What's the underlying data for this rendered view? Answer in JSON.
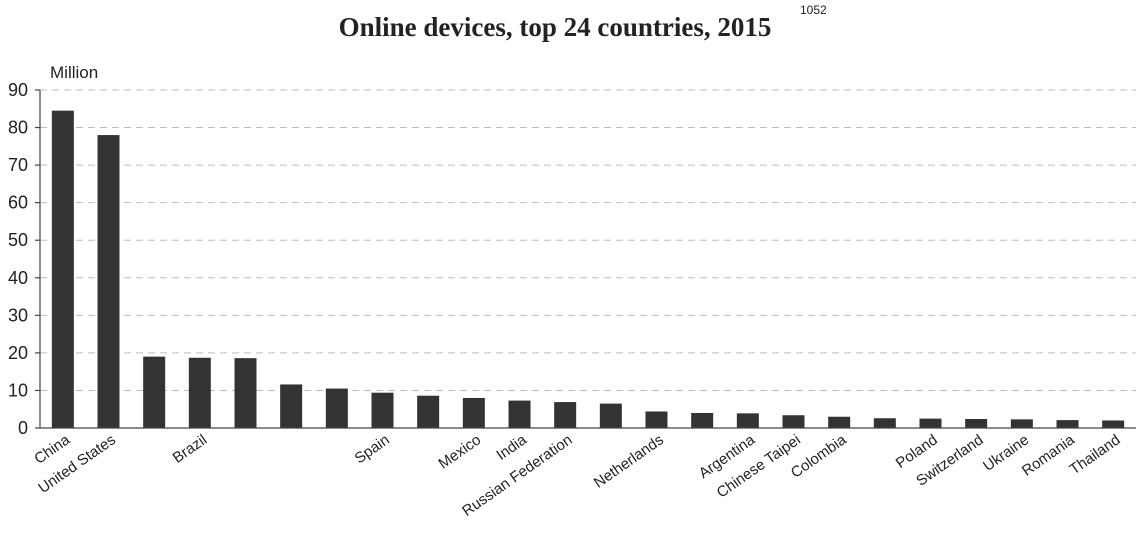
{
  "chart_data": {
    "type": "bar",
    "title": "Online devices, top 24 countries, 2015",
    "title_superscript": "1052",
    "ylabel": "Million",
    "xlabel": "",
    "ylim": [
      0,
      90
    ],
    "yticks": [
      0,
      10,
      20,
      30,
      40,
      50,
      60,
      70,
      80,
      90
    ],
    "grid": true,
    "legend": "none",
    "bar_color": "#333333",
    "categories": [
      "China",
      "United States",
      "",
      "Brazil",
      "",
      "",
      "",
      "Spain",
      "",
      "Mexico",
      "India",
      "Russian Federation",
      "",
      "Netherlands",
      "",
      "Argentina",
      "Chinese Taipei",
      "Colombia",
      "",
      "Poland",
      "Switzerland",
      "Ukraine",
      "Romania",
      "Thailand"
    ],
    "values": [
      84.5,
      78,
      19,
      18.7,
      18.6,
      11.6,
      10.5,
      9.4,
      8.6,
      8,
      7.3,
      6.9,
      6.5,
      4.4,
      4,
      3.9,
      3.4,
      3,
      2.6,
      2.5,
      2.4,
      2.3,
      2.1,
      2
    ],
    "tick_label_indices": [
      0,
      1,
      3,
      7,
      9,
      10,
      11,
      13,
      15,
      16,
      17,
      19,
      20,
      21,
      22,
      23
    ]
  }
}
